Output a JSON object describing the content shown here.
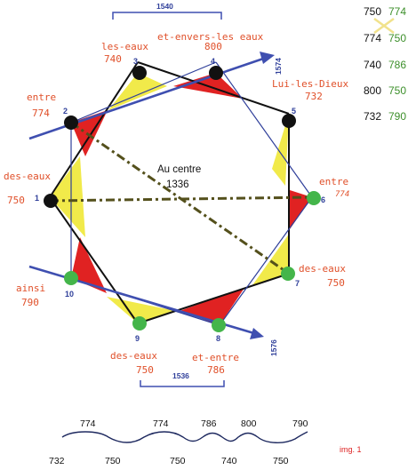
{
  "vertices": [
    {
      "index": "1",
      "word": "des-eaux",
      "value": "750"
    },
    {
      "index": "2",
      "word": "entre",
      "value": "774"
    },
    {
      "index": "3",
      "word": "les-eaux",
      "value": "740"
    },
    {
      "index": "4",
      "word": "et-envers-les eaux",
      "value": "800"
    },
    {
      "index": "5",
      "word": "Lui-les-Dieux",
      "value": "732"
    },
    {
      "index": "6",
      "word": "entre",
      "value": "774"
    },
    {
      "index": "7",
      "word": "des-eaux",
      "value": "750"
    },
    {
      "index": "8",
      "word": "et-entre",
      "value": "786"
    },
    {
      "index": "9",
      "word": "des-eaux",
      "value": "750"
    },
    {
      "index": "10",
      "word": "ainsi",
      "value": "790"
    }
  ],
  "sums": {
    "top": "1540",
    "bottom": "1536",
    "arrow_upper": "1574",
    "arrow_lower": "1576"
  },
  "center": {
    "line1": "Au centre",
    "line2": "1336"
  },
  "side_table": [
    {
      "left": "750",
      "right": "774"
    },
    {
      "left": "774",
      "right": "750"
    },
    {
      "left": "740",
      "right": "786"
    },
    {
      "left": "800",
      "right": "750"
    },
    {
      "left": "732",
      "right": "790"
    }
  ],
  "wave_top": [
    "774",
    "774",
    "786",
    "800",
    "790"
  ],
  "wave_bottom": [
    "732",
    "750",
    "750",
    "740",
    "750"
  ],
  "caption": "img. 1",
  "colors": {
    "red": "#e02222",
    "yellow": "#f1ea4a",
    "blue": "#3f4fb0",
    "green": "#44b54a",
    "black": "#111111",
    "olive": "#54501c",
    "orange": "#e0502a"
  }
}
